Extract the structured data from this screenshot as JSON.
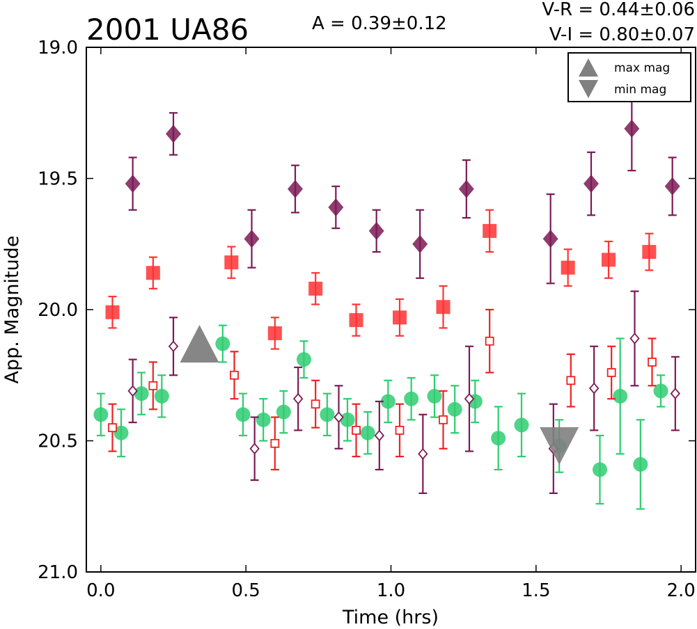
{
  "chart_data": {
    "type": "scatter",
    "title": "2001 UA86",
    "stats": {
      "amplitude": "A  = 0.39±0.12",
      "v_r": "V-R = 0.44±0.06",
      "v_i": "V-I  = 0.80±0.07"
    },
    "xlabel": "Time (hrs)",
    "ylabel": "App. Magnitude",
    "xlim": [
      -0.05,
      2.05
    ],
    "ylim": [
      21.0,
      19.0
    ],
    "y_inverted": true,
    "x_ticks": [
      "0.0",
      "0.5",
      "1.0",
      "1.5",
      "2.0"
    ],
    "y_ticks": [
      "19.0",
      "19.5",
      "20.0",
      "20.5",
      "21.0"
    ],
    "legend": {
      "placement": "top-right",
      "entries": [
        {
          "label": "max mag",
          "marker": "triangle-up",
          "color": "#808080"
        },
        {
          "label": "min mag",
          "marker": "triangle-down",
          "color": "#808080"
        }
      ]
    },
    "extrema": {
      "max_mag": {
        "x": 0.34,
        "y": 20.13
      },
      "min_mag": {
        "x": 1.58,
        "y": 20.52
      }
    },
    "series": [
      {
        "key": "I-filled",
        "marker": "diamond",
        "filled": true,
        "color": "#7b1a55",
        "fill_alpha": 0.85,
        "points": [
          {
            "x": 0.11,
            "y": 19.52,
            "e": 0.1
          },
          {
            "x": 0.25,
            "y": 19.33,
            "e": 0.08
          },
          {
            "x": 0.52,
            "y": 19.73,
            "e": 0.11
          },
          {
            "x": 0.67,
            "y": 19.54,
            "e": 0.09
          },
          {
            "x": 0.81,
            "y": 19.61,
            "e": 0.08
          },
          {
            "x": 0.95,
            "y": 19.7,
            "e": 0.08
          },
          {
            "x": 1.1,
            "y": 19.75,
            "e": 0.13
          },
          {
            "x": 1.26,
            "y": 19.54,
            "e": 0.11
          },
          {
            "x": 1.55,
            "y": 19.73,
            "e": 0.17
          },
          {
            "x": 1.69,
            "y": 19.52,
            "e": 0.12
          },
          {
            "x": 1.83,
            "y": 19.31,
            "e": 0.16
          },
          {
            "x": 1.97,
            "y": 19.53,
            "e": 0.11
          }
        ]
      },
      {
        "key": "R-filled",
        "marker": "square",
        "filled": true,
        "color": "#ff3333",
        "fill_alpha": 0.85,
        "points": [
          {
            "x": 0.04,
            "y": 20.01,
            "e": 0.06
          },
          {
            "x": 0.18,
            "y": 19.86,
            "e": 0.06
          },
          {
            "x": 0.45,
            "y": 19.82,
            "e": 0.06
          },
          {
            "x": 0.6,
            "y": 20.09,
            "e": 0.06
          },
          {
            "x": 0.74,
            "y": 19.92,
            "e": 0.06
          },
          {
            "x": 0.88,
            "y": 20.04,
            "e": 0.06
          },
          {
            "x": 1.03,
            "y": 20.03,
            "e": 0.07
          },
          {
            "x": 1.18,
            "y": 19.99,
            "e": 0.08
          },
          {
            "x": 1.34,
            "y": 19.7,
            "e": 0.08
          },
          {
            "x": 1.61,
            "y": 19.84,
            "e": 0.07
          },
          {
            "x": 1.75,
            "y": 19.81,
            "e": 0.07
          },
          {
            "x": 1.89,
            "y": 19.78,
            "e": 0.07
          }
        ]
      },
      {
        "key": "V-filled",
        "marker": "circle",
        "filled": true,
        "color": "#2ecc71",
        "fill_alpha": 0.85,
        "points": [
          {
            "x": 0.0,
            "y": 20.4,
            "e": 0.08
          },
          {
            "x": 0.07,
            "y": 20.47,
            "e": 0.09
          },
          {
            "x": 0.14,
            "y": 20.32,
            "e": 0.08
          },
          {
            "x": 0.21,
            "y": 20.33,
            "e": 0.08
          },
          {
            "x": 0.42,
            "y": 20.13,
            "e": 0.07
          },
          {
            "x": 0.49,
            "y": 20.4,
            "e": 0.08
          },
          {
            "x": 0.56,
            "y": 20.42,
            "e": 0.08
          },
          {
            "x": 0.63,
            "y": 20.39,
            "e": 0.08
          },
          {
            "x": 0.7,
            "y": 20.19,
            "e": 0.07
          },
          {
            "x": 0.78,
            "y": 20.4,
            "e": 0.08
          },
          {
            "x": 0.85,
            "y": 20.42,
            "e": 0.08
          },
          {
            "x": 0.92,
            "y": 20.47,
            "e": 0.08
          },
          {
            "x": 0.99,
            "y": 20.35,
            "e": 0.08
          },
          {
            "x": 1.07,
            "y": 20.34,
            "e": 0.08
          },
          {
            "x": 1.15,
            "y": 20.33,
            "e": 0.08
          },
          {
            "x": 1.22,
            "y": 20.38,
            "e": 0.09
          },
          {
            "x": 1.29,
            "y": 20.35,
            "e": 0.08
          },
          {
            "x": 1.37,
            "y": 20.49,
            "e": 0.12
          },
          {
            "x": 1.45,
            "y": 20.44,
            "e": 0.12
          },
          {
            "x": 1.58,
            "y": 20.52,
            "e": 0.1
          },
          {
            "x": 1.72,
            "y": 20.61,
            "e": 0.13
          },
          {
            "x": 1.79,
            "y": 20.33,
            "e": 0.22
          },
          {
            "x": 1.86,
            "y": 20.59,
            "e": 0.17
          },
          {
            "x": 1.93,
            "y": 20.31,
            "e": 0.06
          }
        ]
      },
      {
        "key": "R-open",
        "marker": "square",
        "filled": false,
        "color": "#ee2222",
        "points": [
          {
            "x": 0.04,
            "y": 20.45,
            "e": 0.09
          },
          {
            "x": 0.18,
            "y": 20.29,
            "e": 0.09
          },
          {
            "x": 0.46,
            "y": 20.25,
            "e": 0.09
          },
          {
            "x": 0.6,
            "y": 20.51,
            "e": 0.1
          },
          {
            "x": 0.74,
            "y": 20.36,
            "e": 0.09
          },
          {
            "x": 0.88,
            "y": 20.46,
            "e": 0.1
          },
          {
            "x": 1.03,
            "y": 20.46,
            "e": 0.1
          },
          {
            "x": 1.18,
            "y": 20.42,
            "e": 0.11
          },
          {
            "x": 1.34,
            "y": 20.12,
            "e": 0.12
          },
          {
            "x": 1.62,
            "y": 20.27,
            "e": 0.1
          },
          {
            "x": 1.76,
            "y": 20.24,
            "e": 0.1
          },
          {
            "x": 1.9,
            "y": 20.2,
            "e": 0.09
          }
        ]
      },
      {
        "key": "I-open",
        "marker": "diamond",
        "filled": false,
        "color": "#7b1a55",
        "points": [
          {
            "x": 0.11,
            "y": 20.31,
            "e": 0.12
          },
          {
            "x": 0.25,
            "y": 20.14,
            "e": 0.11
          },
          {
            "x": 0.53,
            "y": 20.53,
            "e": 0.12
          },
          {
            "x": 0.68,
            "y": 20.34,
            "e": 0.12
          },
          {
            "x": 0.82,
            "y": 20.41,
            "e": 0.12
          },
          {
            "x": 0.96,
            "y": 20.48,
            "e": 0.13
          },
          {
            "x": 1.11,
            "y": 20.55,
            "e": 0.15
          },
          {
            "x": 1.27,
            "y": 20.34,
            "e": 0.2
          },
          {
            "x": 1.56,
            "y": 20.53,
            "e": 0.17
          },
          {
            "x": 1.7,
            "y": 20.3,
            "e": 0.16
          },
          {
            "x": 1.84,
            "y": 20.11,
            "e": 0.18
          },
          {
            "x": 1.98,
            "y": 20.32,
            "e": 0.14
          }
        ]
      }
    ]
  }
}
